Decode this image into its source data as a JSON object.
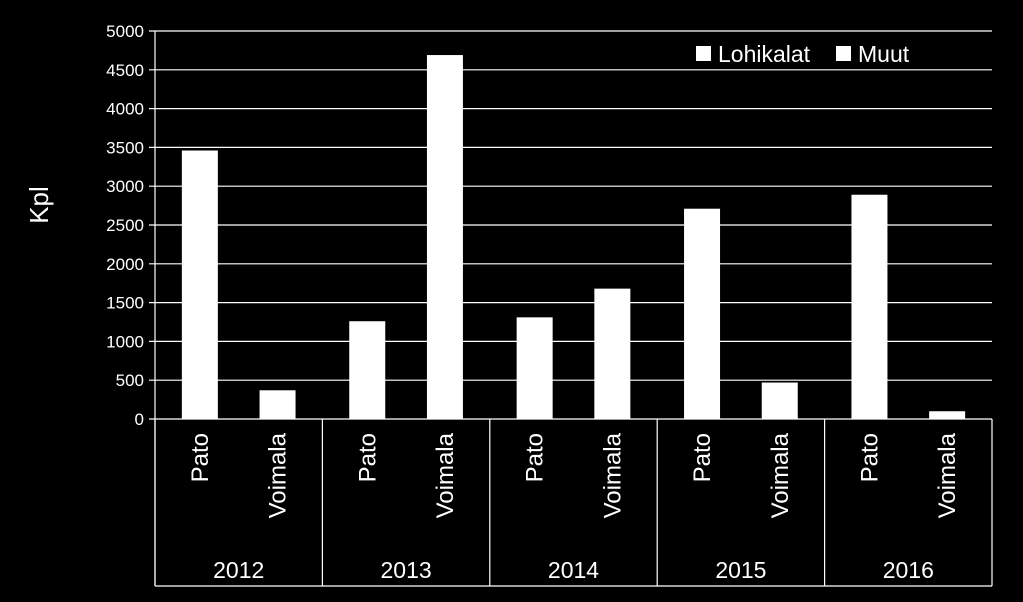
{
  "chart_data": {
    "type": "bar",
    "ylabel": "Kpl",
    "ylim": [
      0,
      5000
    ],
    "y_ticks": [
      0,
      500,
      1000,
      1500,
      2000,
      2500,
      3000,
      3500,
      4000,
      4500,
      5000
    ],
    "grid": true,
    "legend_position": "top-right",
    "groups": [
      "2012",
      "2013",
      "2014",
      "2015",
      "2016"
    ],
    "subcategories": [
      "Pato",
      "Voimala"
    ],
    "series": [
      {
        "name": "Lohikalat",
        "values": [
          3460,
          1260,
          1310,
          2710,
          2890
        ]
      },
      {
        "name": "Muut",
        "values": [
          370,
          4690,
          1680,
          470,
          100
        ]
      }
    ]
  },
  "colors": {
    "background": "#000000",
    "bar": "#ffffff",
    "grid": "#ffffff",
    "text": "#ffffff"
  }
}
